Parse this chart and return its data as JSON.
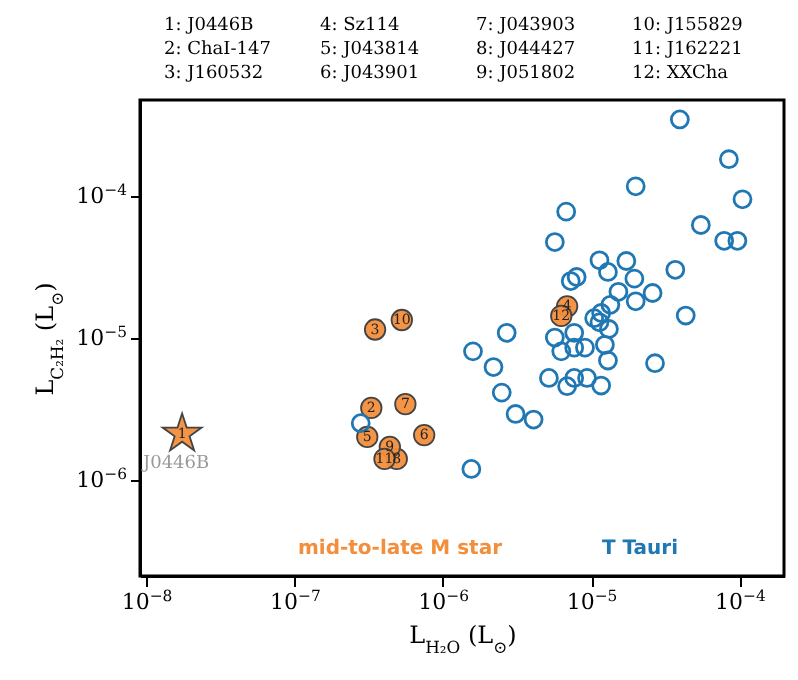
{
  "chart_data": {
    "type": "scatter",
    "xlabel": "L$_{H₂O}$ (L$_{⊙}$)",
    "ylabel": "L$_{C₂H₂}$ (L$_{⊙}$)",
    "log": "xy",
    "xlim": [
      9.1e-09,
      0.0002
    ],
    "ylim": [
      2.1e-07,
      0.00047
    ],
    "xticks": [
      {
        "value": 1e-08,
        "label": "10$^{−8}$"
      },
      {
        "value": 1e-07,
        "label": "10$^{−7}$"
      },
      {
        "value": 1e-06,
        "label": "10$^{−6}$"
      },
      {
        "value": 1e-05,
        "label": "10$^{−5}$"
      },
      {
        "value": 0.0001,
        "label": "10$^{−4}$"
      }
    ],
    "yticks": [
      {
        "value": 1e-06,
        "label": "10$^{−6}$"
      },
      {
        "value": 1e-05,
        "label": "10$^{−5}$"
      },
      {
        "value": 0.0001,
        "label": "10$^{−4}$"
      }
    ],
    "grid": false,
    "legend": false,
    "series": [
      {
        "color": "#f28e3c",
        "marker": "star",
        "x": [
          1.75e-08
        ],
        "values": [
          2.1e-06
        ]
      },
      {
        "name": "mid-to-late M star",
        "color": "#f28e3c",
        "marker": "circle",
        "x": [
          3.3e-07,
          3.5e-07,
          6.9e-06,
          3.1e-07,
          7.5e-07,
          5.6e-07,
          4.9e-07,
          4.4e-07,
          5.3e-07,
          4.05e-07,
          6.3e-06
        ],
        "values": [
          3.2e-06,
          1.14e-05,
          1.66e-05,
          2e-06,
          2.06e-06,
          3.4e-06,
          1.4e-06,
          1.7e-06,
          1.33e-05,
          1.4e-06,
          1.42e-05
        ]
      },
      {
        "name": "T Tauri",
        "color": "#1f77b4",
        "marker": "circle",
        "x": [
          3.97e-05,
          8.5e-05,
          2e-05,
          0.000105,
          6.8e-06,
          5.5e-05,
          5.7e-06,
          7.9e-05,
          9.7e-05,
          1.14e-05,
          1.73e-05,
          1.3e-05,
          8e-06,
          7.3e-06,
          1.96e-05,
          3.7e-05,
          1.53e-05,
          2.6e-05,
          2e-05,
          1.35e-05,
          1.17e-05,
          4.35e-05,
          1.05e-05,
          1.14e-05,
          1.32e-05,
          7.7e-06,
          5.7e-06,
          2.7e-06,
          1.6e-06,
          7.7e-06,
          9.1e-06,
          6.3e-06,
          1.24e-05,
          1.3e-05,
          2.7e-05,
          2.2e-06,
          5.2e-06,
          7.7e-06,
          9.4e-06,
          6.9e-06,
          1.17e-05,
          2.5e-06,
          3.1e-06,
          4.1e-06,
          2.8e-07,
          1.56e-06
        ],
        "values": [
          0.000343,
          0.00018,
          0.000116,
          9.4e-05,
          7.7e-05,
          6.2e-05,
          4.7e-05,
          4.8e-05,
          4.8e-05,
          3.5e-05,
          3.46e-05,
          2.9e-05,
          2.67e-05,
          2.5e-05,
          2.6e-05,
          3e-05,
          2.1e-05,
          2.06e-05,
          1.8e-05,
          1.7e-05,
          1.49e-05,
          1.43e-05,
          1.37e-05,
          1.28e-05,
          1.15e-05,
          1.08e-05,
          1e-05,
          1.08e-05,
          8e-06,
          8.5e-06,
          8.5e-06,
          8e-06,
          8.9e-06,
          6.9e-06,
          6.6e-06,
          6.2e-06,
          5.2e-06,
          5.2e-06,
          5.2e-06,
          4.55e-06,
          4.6e-06,
          4.1e-06,
          2.9e-06,
          2.65e-06,
          2.5e-06,
          1.19e-06
        ]
      }
    ],
    "annotations": [
      "1: J0446B",
      "2: ChaI-147",
      "3: J160532",
      "4: Sz114",
      "5: J043814",
      "6: J043901",
      "7: J043903",
      "8: J044427",
      "9: J051802",
      "10: J155829",
      "11: J162221",
      "12: XXCha",
      {
        "text": "J0446B",
        "x": 1.75e-08,
        "y": 2.1e-06
      },
      {
        "text": "1",
        "x": 1.75e-08,
        "y": 2.1e-06
      },
      {
        "text": "2",
        "x": 3.3e-07,
        "y": 3.2e-06
      },
      {
        "text": "3",
        "x": 3.5e-07,
        "y": 1.14e-05
      },
      {
        "text": "4",
        "x": 6.9e-06,
        "y": 1.66e-05
      },
      {
        "text": "5",
        "x": 3.1e-07,
        "y": 2e-06
      },
      {
        "text": "6",
        "x": 7.5e-07,
        "y": 2.06e-06
      },
      {
        "text": "7",
        "x": 5.6e-07,
        "y": 3.4e-06
      },
      {
        "text": "8",
        "x": 4.9e-07,
        "y": 1.4e-06
      },
      {
        "text": "9",
        "x": 4.4e-07,
        "y": 1.7e-06
      },
      {
        "text": "10",
        "x": 5.3e-07,
        "y": 1.33e-05
      },
      {
        "text": "11",
        "x": 4.05e-07,
        "y": 1.4e-06
      },
      {
        "text": "12",
        "x": 6.3e-06,
        "y": 1.42e-05
      }
    ]
  }
}
